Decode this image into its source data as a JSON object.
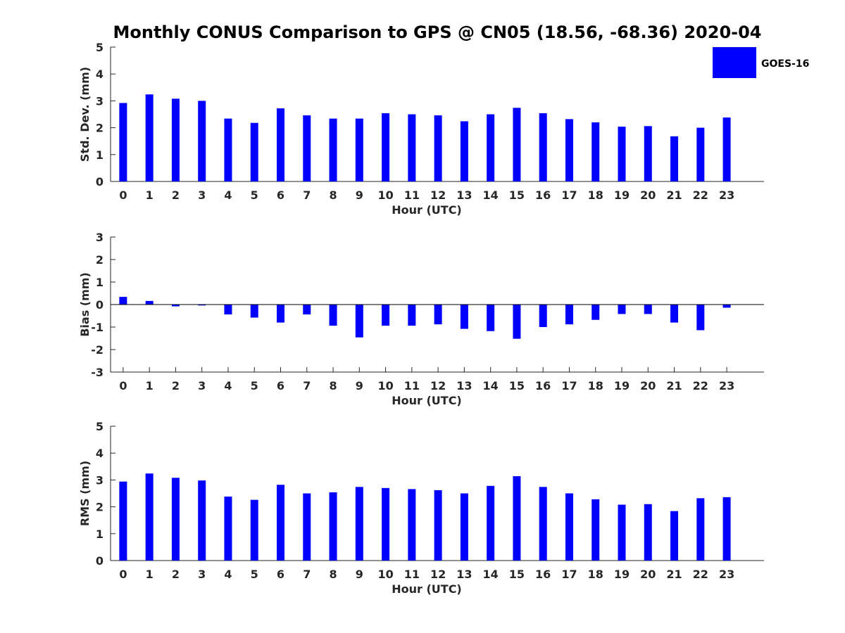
{
  "figure": {
    "title": "Monthly CONUS Comparison to GPS @ CN05 (18.56, -68.36) 2020-04",
    "legend": {
      "label": "GOES-16",
      "placement": "top-right",
      "color": "#0000ff"
    }
  },
  "chart_data": [
    {
      "type": "bar",
      "xlabel": "Hour (UTC)",
      "ylabel": "Std. Dev. (mm)",
      "ylim": [
        0,
        5
      ],
      "yticks": [
        0,
        1,
        2,
        3,
        4,
        5
      ],
      "categories": [
        "0",
        "1",
        "2",
        "3",
        "4",
        "5",
        "6",
        "7",
        "8",
        "9",
        "10",
        "11",
        "12",
        "13",
        "14",
        "15",
        "16",
        "17",
        "18",
        "19",
        "20",
        "21",
        "22",
        "23"
      ],
      "series": [
        {
          "name": "GOES-16",
          "color": "#0000ff",
          "values": [
            2.92,
            3.24,
            3.08,
            3.0,
            2.34,
            2.18,
            2.72,
            2.46,
            2.34,
            2.34,
            2.54,
            2.5,
            2.46,
            2.24,
            2.5,
            2.74,
            2.54,
            2.32,
            2.2,
            2.04,
            2.06,
            1.68,
            2.0,
            2.38
          ]
        }
      ]
    },
    {
      "type": "bar",
      "xlabel": "Hour (UTC)",
      "ylabel": "Bias (mm)",
      "ylim": [
        -3,
        3
      ],
      "yticks": [
        -3,
        -2,
        -1,
        0,
        1,
        2,
        3
      ],
      "zero_line": true,
      "categories": [
        "0",
        "1",
        "2",
        "3",
        "4",
        "5",
        "6",
        "7",
        "8",
        "9",
        "10",
        "11",
        "12",
        "13",
        "14",
        "15",
        "16",
        "17",
        "18",
        "19",
        "20",
        "21",
        "22",
        "23"
      ],
      "series": [
        {
          "name": "GOES-16",
          "color": "#0000ff",
          "values": [
            0.34,
            0.16,
            -0.08,
            -0.04,
            -0.44,
            -0.58,
            -0.8,
            -0.44,
            -0.94,
            -1.46,
            -0.94,
            -0.94,
            -0.88,
            -1.08,
            -1.18,
            -1.52,
            -1.0,
            -0.88,
            -0.68,
            -0.42,
            -0.42,
            -0.8,
            -1.14,
            -0.14
          ]
        }
      ]
    },
    {
      "type": "bar",
      "xlabel": "Hour (UTC)",
      "ylabel": "RMS (mm)",
      "ylim": [
        0,
        5
      ],
      "yticks": [
        0,
        1,
        2,
        3,
        4,
        5
      ],
      "categories": [
        "0",
        "1",
        "2",
        "3",
        "4",
        "5",
        "6",
        "7",
        "8",
        "9",
        "10",
        "11",
        "12",
        "13",
        "14",
        "15",
        "16",
        "17",
        "18",
        "19",
        "20",
        "21",
        "22",
        "23"
      ],
      "series": [
        {
          "name": "GOES-16",
          "color": "#0000ff",
          "values": [
            2.94,
            3.24,
            3.08,
            2.98,
            2.38,
            2.26,
            2.82,
            2.5,
            2.54,
            2.74,
            2.7,
            2.66,
            2.62,
            2.5,
            2.78,
            3.14,
            2.74,
            2.5,
            2.28,
            2.08,
            2.1,
            1.84,
            2.32,
            2.36
          ]
        }
      ]
    }
  ]
}
